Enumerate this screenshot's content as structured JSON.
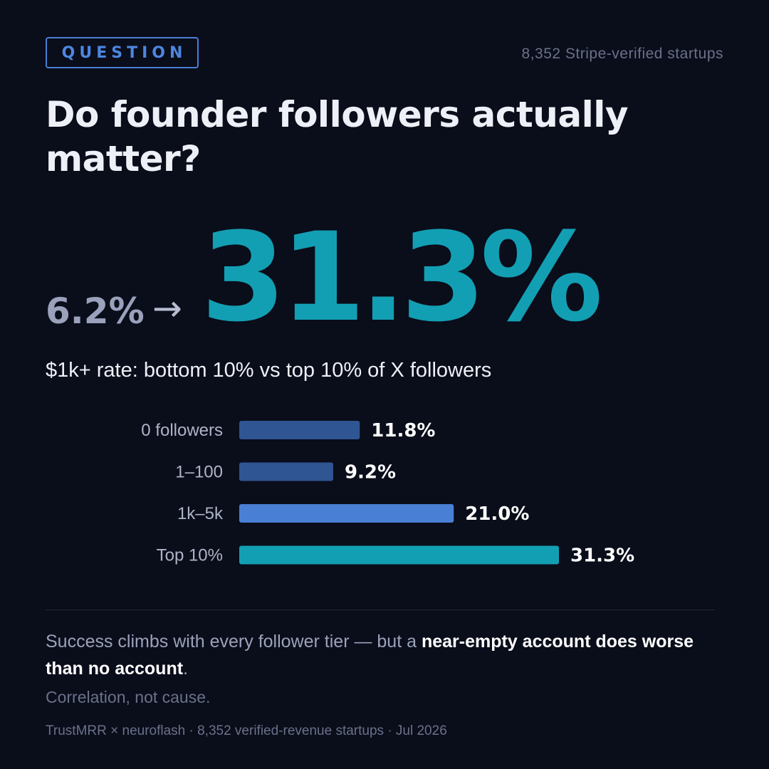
{
  "header": {
    "badge": "QUESTION",
    "source": "8,352 Stripe-verified startups"
  },
  "title": "Do founder followers actually matter?",
  "hero": {
    "from_value": "6.2%",
    "arrow": "→",
    "to_value": "31.3%"
  },
  "subtitle": "$1k+ rate: bottom 10% vs top 10% of X followers",
  "colors": {
    "background": "#0a0d1a",
    "accent_teal": "#139fb3",
    "accent_blue": "#4d86e0",
    "muted_blue": "#2f5592"
  },
  "chart_data": {
    "type": "bar",
    "orientation": "horizontal",
    "categories": [
      "0 followers",
      "1–100",
      "1k–5k",
      "Top 10%"
    ],
    "values": [
      11.8,
      9.2,
      21.0,
      31.3
    ],
    "value_labels": [
      "11.8%",
      "9.2%",
      "21.0%",
      "31.3%"
    ],
    "bar_colors": [
      "#2f5592",
      "#2f5592",
      "#4a7fd6",
      "#139fb3"
    ],
    "xlim": [
      0,
      31.3
    ],
    "title": "",
    "xlabel": "",
    "ylabel": "",
    "grid": false,
    "legend": false
  },
  "note": {
    "plain": "Success climbs with every follower tier — but a ",
    "bold": "near-empty account does worse than no account",
    "end": "."
  },
  "caveat": "Correlation, not cause.",
  "footer": "TrustMRR × neuroflash · 8,352 verified-revenue startups · Jul 2026"
}
